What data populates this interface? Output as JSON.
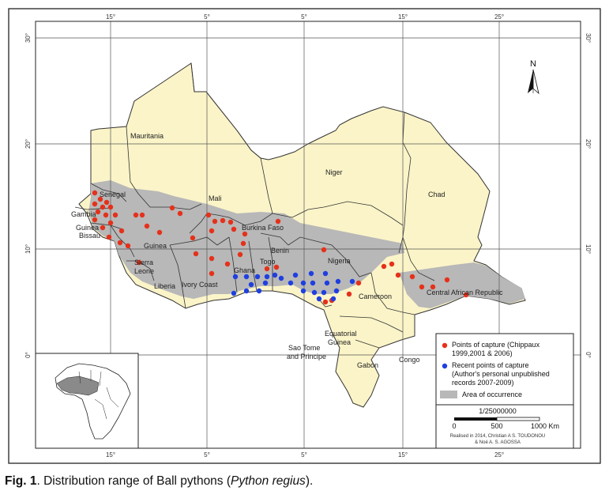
{
  "colors": {
    "land": "#fbf4c8",
    "occurrence": "#b8b8b8",
    "border": "#333333",
    "frame": "#222222",
    "capture_old": "#e5311b",
    "capture_recent": "#1f3fe0",
    "grid": "#555555"
  },
  "lon_ticks": {
    "top": [
      "15°",
      "5°",
      "5°",
      "15°",
      "25°"
    ],
    "bottom": [
      "15°",
      "5°",
      "5°",
      "15°",
      "25°"
    ]
  },
  "lat_ticks": {
    "left": [
      "30°",
      "20°",
      "10°",
      "0°"
    ],
    "right": [
      "30°",
      "20°",
      "10°",
      "0°"
    ]
  },
  "countries": [
    "Mauritania",
    "Mali",
    "Niger",
    "Chad",
    "Senegal",
    "Gambia",
    "Guinea",
    "Bissau",
    "Guinea",
    "Sierra",
    "Leone",
    "Liberia",
    "Ivory Coast",
    "Burkina Faso",
    "Ghana",
    "Togo",
    "Benin",
    "Nigeria",
    "Cameroon",
    "Central African Republic",
    "Equatorial",
    "Guinea",
    "Sao Tome",
    "and Principe",
    "Gabon",
    "Congo"
  ],
  "north_label": "N",
  "legend": {
    "old": [
      "Points of capture (Chippaux",
      "1999,2001 & 2006)"
    ],
    "recent": [
      "Recent points of capture",
      "(Author's personal unpublished",
      "records 2007-2009)"
    ],
    "area": "Area of occurrence"
  },
  "scale": {
    "ratio": "1/25000000",
    "labels": [
      "0",
      "500",
      "1000 Km"
    ]
  },
  "credits": [
    "Realised in 2014, Christian A S. TOUDONOU",
    "& Noé A. S. AGOSSA"
  ],
  "caption": {
    "fig": "Fig. 1",
    "pre": ". Distribution range of Ball pythons (",
    "species": "Python regius",
    "post": ")."
  }
}
